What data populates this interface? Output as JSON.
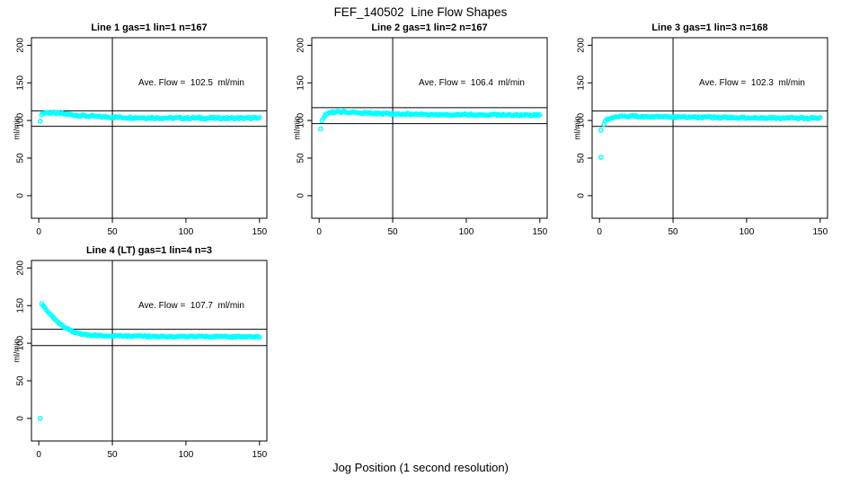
{
  "page": {
    "title": "FEF_140502  Line Flow Shapes",
    "xlabel": "Jog Position (1 second resolution)"
  },
  "colors": {
    "marker": "#00ffff",
    "axis": "#000000",
    "text": "#000000",
    "background": "#ffffff"
  },
  "axes": {
    "xticks": [
      0,
      50,
      100,
      150
    ],
    "yticks": [
      0,
      50,
      100,
      150,
      200
    ],
    "xlim": [
      -5,
      155
    ],
    "ylim": [
      -30,
      210
    ],
    "ylabel": "ml/min",
    "marker": "open-circle",
    "grid": false
  },
  "chart_data": [
    {
      "type": "scatter",
      "title": "Line 1 gas=1 lin=1 n=167",
      "line": 1,
      "gas": 1,
      "lin": 1,
      "n": 167,
      "annotation": "Ave. Flow =  102.5  ml/min",
      "ave_flow_ml_min": 102.5,
      "vline_x": 50,
      "hlines": [
        112.8,
        92.3
      ],
      "trend_points": [
        [
          2,
          109
        ],
        [
          5,
          110.5
        ],
        [
          10,
          110
        ],
        [
          18,
          108.5
        ],
        [
          28,
          106.5
        ],
        [
          40,
          105
        ],
        [
          60,
          103.8
        ],
        [
          90,
          103.2
        ],
        [
          150,
          103
        ]
      ],
      "outliers": [
        [
          1,
          99
        ]
      ],
      "noise": 1.2,
      "x_start": 2,
      "x_end": 150
    },
    {
      "type": "scatter",
      "title": "Line 2 gas=1 lin=2 n=167",
      "line": 2,
      "gas": 1,
      "lin": 2,
      "n": 167,
      "annotation": "Ave. Flow =  106.4  ml/min",
      "ave_flow_ml_min": 106.4,
      "vline_x": 50,
      "hlines": [
        117.0,
        95.8
      ],
      "trend_points": [
        [
          2,
          99
        ],
        [
          3,
          104
        ],
        [
          5,
          108.5
        ],
        [
          8,
          110.5
        ],
        [
          14,
          111.5
        ],
        [
          24,
          110.5
        ],
        [
          40,
          109.2
        ],
        [
          70,
          108.2
        ],
        [
          110,
          107.6
        ],
        [
          150,
          107.2
        ]
      ],
      "outliers": [
        [
          1,
          89
        ]
      ],
      "noise": 1.1,
      "x_start": 2,
      "x_end": 150
    },
    {
      "type": "scatter",
      "title": "Line 3 gas=1 lin=3 n=168",
      "line": 3,
      "gas": 1,
      "lin": 3,
      "n": 168,
      "annotation": "Ave. Flow =  102.3  ml/min",
      "ave_flow_ml_min": 102.3,
      "vline_x": 50,
      "hlines": [
        112.5,
        92.1
      ],
      "trend_points": [
        [
          3,
          96
        ],
        [
          5,
          101
        ],
        [
          8,
          103.5
        ],
        [
          12,
          105
        ],
        [
          20,
          105.5
        ],
        [
          35,
          105
        ],
        [
          60,
          104.3
        ],
        [
          100,
          103.5
        ],
        [
          150,
          103
        ]
      ],
      "outliers": [
        [
          1,
          87
        ],
        [
          1,
          51
        ]
      ],
      "noise": 1.1,
      "x_start": 3,
      "x_end": 150
    },
    {
      "type": "scatter",
      "title": "Line 4 (LT) gas=1 lin=4 n=3",
      "line": 4,
      "gas": 1,
      "lin": 4,
      "n": 3,
      "annotation": "Ave. Flow =  107.7  ml/min",
      "ave_flow_ml_min": 107.7,
      "vline_x": 50,
      "hlines": [
        118.5,
        96.9
      ],
      "trend_points": [
        [
          2,
          152.5
        ],
        [
          4,
          147
        ],
        [
          6,
          142
        ],
        [
          9,
          135.5
        ],
        [
          12,
          129.5
        ],
        [
          15,
          124.5
        ],
        [
          18,
          120.5
        ],
        [
          21,
          117.5
        ],
        [
          25,
          114
        ],
        [
          29,
          112
        ],
        [
          34,
          110.8
        ],
        [
          42,
          110
        ],
        [
          55,
          109.5
        ],
        [
          80,
          109
        ],
        [
          110,
          108.7
        ],
        [
          150,
          108.5
        ]
      ],
      "outliers": [
        [
          1,
          0
        ]
      ],
      "noise": 0.9,
      "x_start": 2,
      "x_end": 150
    }
  ]
}
